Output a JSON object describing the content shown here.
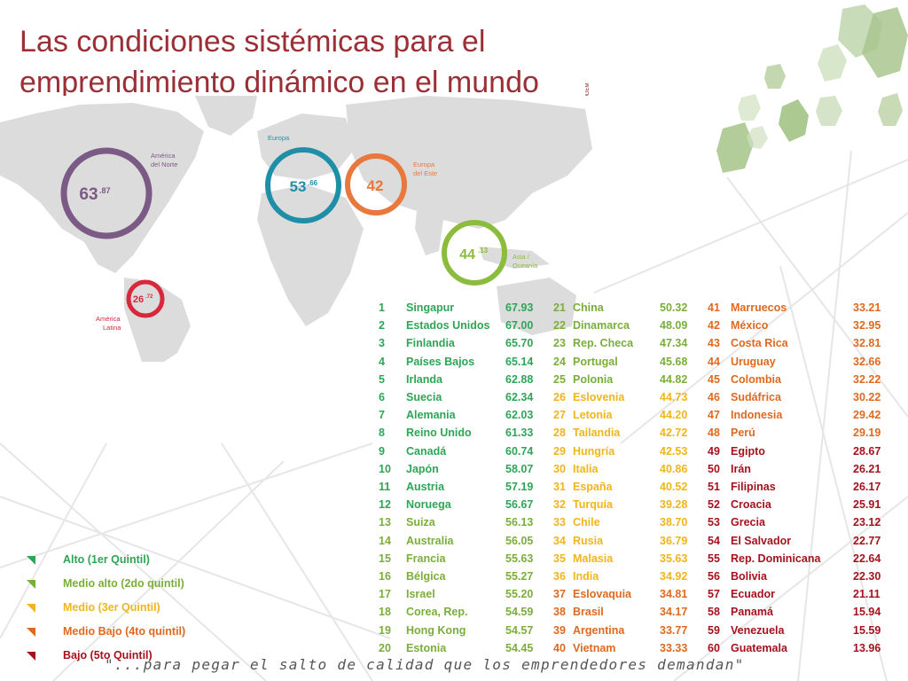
{
  "title_line1": "Las condiciones sistémicas para el",
  "title_line2": "emprendimiento dinámico en el mundo",
  "watermark": "PRODEM",
  "regions": [
    {
      "name": "América del Norte",
      "line1": "América",
      "line2": "del Norte",
      "score_main": "63",
      "score_dec": ".87",
      "color": "#7b5a86"
    },
    {
      "name": "Europa",
      "line1": "Europa",
      "line2": "",
      "score_main": "53",
      "score_dec": ".66",
      "color": "#1f8fa8"
    },
    {
      "name": "Europa del Este",
      "line1": "Europa",
      "line2": "del Este",
      "score_main": "42",
      "score_dec": "",
      "color": "#e9783d"
    },
    {
      "name": "Asia / Oceanía",
      "line1": "Asia /",
      "line2": "Oceanía",
      "score_main": "44",
      "score_dec": ".13",
      "color": "#8cbc3d"
    },
    {
      "name": "América Latina",
      "line1": "América",
      "line2": "Latina",
      "score_main": "26",
      "score_dec": ".72",
      "color": "#d8283c"
    }
  ],
  "quintile_colors": {
    "alto": "#2ea556",
    "medio_alto": "#7aae3a",
    "medio": "#f0b51b",
    "medio_bajo": "#e0691f",
    "bajo": "#a5121d"
  },
  "ranking": [
    {
      "rank": "1",
      "country": "Singapur",
      "score": "67.93",
      "quintile": "alto"
    },
    {
      "rank": "2",
      "country": "Estados Unidos",
      "score": "67.00",
      "quintile": "alto"
    },
    {
      "rank": "3",
      "country": "Finlandia",
      "score": "65.70",
      "quintile": "alto"
    },
    {
      "rank": "4",
      "country": "Países Bajos",
      "score": "65.14",
      "quintile": "alto"
    },
    {
      "rank": "5",
      "country": "Irlanda",
      "score": "62.88",
      "quintile": "alto"
    },
    {
      "rank": "6",
      "country": "Suecia",
      "score": "62.34",
      "quintile": "alto"
    },
    {
      "rank": "7",
      "country": "Alemania",
      "score": "62.03",
      "quintile": "alto"
    },
    {
      "rank": "8",
      "country": "Reino Unido",
      "score": "61.33",
      "quintile": "alto"
    },
    {
      "rank": "9",
      "country": "Canadá",
      "score": "60.74",
      "quintile": "alto"
    },
    {
      "rank": "10",
      "country": "Japón",
      "score": "58.07",
      "quintile": "alto"
    },
    {
      "rank": "11",
      "country": "Austria",
      "score": "57.19",
      "quintile": "alto"
    },
    {
      "rank": "12",
      "country": "Noruega",
      "score": "56.67",
      "quintile": "alto"
    },
    {
      "rank": "13",
      "country": "Suiza",
      "score": "56.13",
      "quintile": "medio_alto"
    },
    {
      "rank": "14",
      "country": "Australia",
      "score": "56.05",
      "quintile": "medio_alto"
    },
    {
      "rank": "15",
      "country": "Francia",
      "score": "55.63",
      "quintile": "medio_alto"
    },
    {
      "rank": "16",
      "country": "Bélgica",
      "score": "55.27",
      "quintile": "medio_alto"
    },
    {
      "rank": "17",
      "country": "Israel",
      "score": "55.20",
      "quintile": "medio_alto"
    },
    {
      "rank": "18",
      "country": "Corea, Rep.",
      "score": "54.59",
      "quintile": "medio_alto"
    },
    {
      "rank": "19",
      "country": "Hong Kong",
      "score": "54.57",
      "quintile": "medio_alto"
    },
    {
      "rank": "20",
      "country": "Estonia",
      "score": "54.45",
      "quintile": "medio_alto"
    },
    {
      "rank": "21",
      "country": "China",
      "score": "50.32",
      "quintile": "medio_alto"
    },
    {
      "rank": "22",
      "country": "Dinamarca",
      "score": "48.09",
      "quintile": "medio_alto"
    },
    {
      "rank": "23",
      "country": "Rep. Checa",
      "score": "47.34",
      "quintile": "medio_alto"
    },
    {
      "rank": "24",
      "country": "Portugal",
      "score": "45.68",
      "quintile": "medio_alto"
    },
    {
      "rank": "25",
      "country": "Polonia",
      "score": "44.82",
      "quintile": "medio_alto"
    },
    {
      "rank": "26",
      "country": "Eslovenia",
      "score": "44.73",
      "quintile": "medio"
    },
    {
      "rank": "27",
      "country": "Letonia",
      "score": "44.20",
      "quintile": "medio"
    },
    {
      "rank": "28",
      "country": "Tailandia",
      "score": "42.72",
      "quintile": "medio"
    },
    {
      "rank": "29",
      "country": "Hungría",
      "score": "42.53",
      "quintile": "medio"
    },
    {
      "rank": "30",
      "country": "Italia",
      "score": "40.86",
      "quintile": "medio"
    },
    {
      "rank": "31",
      "country": "España",
      "score": "40.52",
      "quintile": "medio"
    },
    {
      "rank": "32",
      "country": "Turquía",
      "score": "39.28",
      "quintile": "medio"
    },
    {
      "rank": "33",
      "country": "Chile",
      "score": "38.70",
      "quintile": "medio"
    },
    {
      "rank": "34",
      "country": "Rusia",
      "score": "36.79",
      "quintile": "medio"
    },
    {
      "rank": "35",
      "country": "Malasia",
      "score": "35.63",
      "quintile": "medio"
    },
    {
      "rank": "36",
      "country": "India",
      "score": "34.92",
      "quintile": "medio"
    },
    {
      "rank": "37",
      "country": "Eslovaquia",
      "score": "34.81",
      "quintile": "medio_bajo"
    },
    {
      "rank": "38",
      "country": "Brasil",
      "score": "34.17",
      "quintile": "medio_bajo"
    },
    {
      "rank": "39",
      "country": "Argentina",
      "score": "33.77",
      "quintile": "medio_bajo"
    },
    {
      "rank": "40",
      "country": "Vietnam",
      "score": "33.33",
      "quintile": "medio_bajo"
    },
    {
      "rank": "41",
      "country": "Marruecos",
      "score": "33.21",
      "quintile": "medio_bajo"
    },
    {
      "rank": "42",
      "country": "México",
      "score": "32.95",
      "quintile": "medio_bajo"
    },
    {
      "rank": "43",
      "country": "Costa Rica",
      "score": "32.81",
      "quintile": "medio_bajo"
    },
    {
      "rank": "44",
      "country": "Uruguay",
      "score": "32.66",
      "quintile": "medio_bajo"
    },
    {
      "rank": "45",
      "country": "Colombia",
      "score": "32.22",
      "quintile": "medio_bajo"
    },
    {
      "rank": "46",
      "country": "Sudáfrica",
      "score": "30.22",
      "quintile": "medio_bajo"
    },
    {
      "rank": "47",
      "country": "Indonesia",
      "score": "29.42",
      "quintile": "medio_bajo"
    },
    {
      "rank": "48",
      "country": "Perú",
      "score": "29.19",
      "quintile": "medio_bajo"
    },
    {
      "rank": "49",
      "country": "Egipto",
      "score": "28.67",
      "quintile": "bajo"
    },
    {
      "rank": "50",
      "country": "Irán",
      "score": "26.21",
      "quintile": "bajo"
    },
    {
      "rank": "51",
      "country": "Filipinas",
      "score": "26.17",
      "quintile": "bajo"
    },
    {
      "rank": "52",
      "country": "Croacia",
      "score": "25.91",
      "quintile": "bajo"
    },
    {
      "rank": "53",
      "country": "Grecia",
      "score": "23.12",
      "quintile": "bajo"
    },
    {
      "rank": "54",
      "country": "El Salvador",
      "score": "22.77",
      "quintile": "bajo"
    },
    {
      "rank": "55",
      "country": "Rep. Dominicana",
      "score": "22.64",
      "quintile": "bajo"
    },
    {
      "rank": "56",
      "country": "Bolivia",
      "score": "22.30",
      "quintile": "bajo"
    },
    {
      "rank": "57",
      "country": "Ecuador",
      "score": "21.11",
      "quintile": "bajo"
    },
    {
      "rank": "58",
      "country": "Panamá",
      "score": "15.94",
      "quintile": "bajo"
    },
    {
      "rank": "59",
      "country": "Venezuela",
      "score": "15.59",
      "quintile": "bajo"
    },
    {
      "rank": "60",
      "country": "Guatemala",
      "score": "13.96",
      "quintile": "bajo"
    }
  ],
  "legend": [
    {
      "label": "Alto (1er Quintil)",
      "quintile": "alto"
    },
    {
      "label": "Medio alto (2do quintil)",
      "quintile": "medio_alto"
    },
    {
      "label": "Medio (3er Quintil)",
      "quintile": "medio"
    },
    {
      "label": "Medio Bajo (4to quintil)",
      "quintile": "medio_bajo"
    },
    {
      "label": "Bajo (5to Quintil)",
      "quintile": "bajo"
    }
  ],
  "quote": "\"...para pegar el salto de calidad que los emprendedores demandan\""
}
